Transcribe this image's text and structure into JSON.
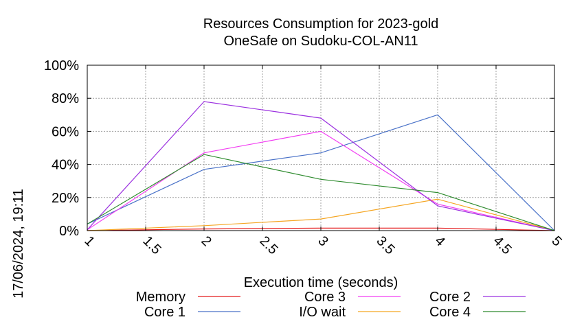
{
  "chart_data": {
    "type": "line",
    "title_line1": "Resources Consumption for 2023-gold",
    "title_line2": "OneSafe on Sudoku-COL-AN11",
    "xlabel": "Execution time (seconds)",
    "side_label": "17/06/2024, 19:11",
    "x_ticks": [
      "1",
      "1.5",
      "2",
      "2.5",
      "3",
      "3.5",
      "4",
      "4.5",
      "5"
    ],
    "y_ticks": [
      "0%",
      "20%",
      "40%",
      "60%",
      "80%",
      "100%"
    ],
    "xlim": [
      1,
      5
    ],
    "ylim": [
      0,
      100
    ],
    "grid": true,
    "legend_position": "bottom",
    "series": [
      {
        "name": "Memory",
        "color": "#e41a1c",
        "x": [
          1,
          2,
          3,
          4,
          5
        ],
        "y": [
          0,
          1,
          1.5,
          1.5,
          0
        ]
      },
      {
        "name": "Core 1",
        "color": "#4a72c8",
        "x": [
          1,
          2,
          3,
          4,
          5
        ],
        "y": [
          4,
          37,
          47,
          70,
          0
        ]
      },
      {
        "name": "Core 3",
        "color": "#f23df2",
        "x": [
          1,
          2,
          3,
          4,
          5
        ],
        "y": [
          0.5,
          47,
          60,
          16,
          0
        ]
      },
      {
        "name": "I/O wait",
        "color": "#f5a623",
        "x": [
          1,
          2,
          3,
          4,
          5
        ],
        "y": [
          0,
          3,
          7,
          19,
          0
        ]
      },
      {
        "name": "Core 2",
        "color": "#9b30e0",
        "x": [
          1,
          2,
          3,
          4,
          5
        ],
        "y": [
          0.5,
          78,
          68,
          15,
          0
        ]
      },
      {
        "name": "Core 4",
        "color": "#2e8b2e",
        "x": [
          1,
          2,
          3,
          4,
          5
        ],
        "y": [
          4,
          46,
          31,
          23,
          0
        ]
      }
    ]
  }
}
